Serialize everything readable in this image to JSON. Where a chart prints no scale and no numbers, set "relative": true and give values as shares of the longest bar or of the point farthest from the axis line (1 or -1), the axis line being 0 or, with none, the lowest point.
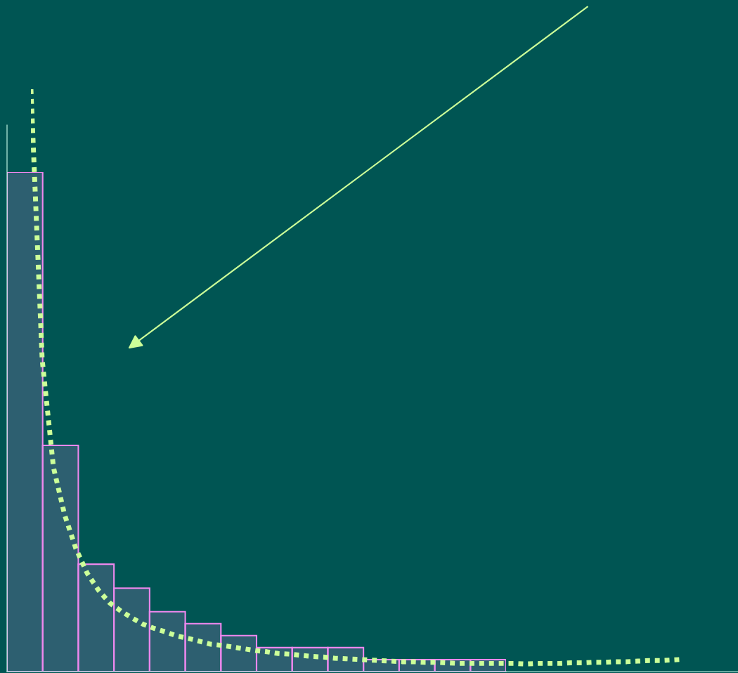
{
  "chart_data": [
    {
      "type": "bar",
      "relative": true,
      "color": "#ee88ee",
      "categories": [
        null,
        null,
        null,
        null,
        null,
        null,
        null,
        null,
        null,
        null,
        null,
        null,
        null,
        null
      ],
      "values": [
        1,
        0.453,
        0.215,
        0.167,
        0.12,
        0.096,
        0.072,
        0.048,
        0.048,
        0.048,
        0.024,
        0.024,
        0.024,
        0.024
      ]
    },
    {
      "type": "line",
      "relative": true,
      "color": "#ccff99",
      "line_style": "dotted",
      "categories": [
        null,
        null,
        null,
        null,
        null,
        null,
        null,
        null,
        null,
        null,
        null,
        null,
        null,
        null,
        null,
        null,
        null,
        null,
        null,
        null,
        null,
        null,
        null,
        null,
        null,
        null,
        null,
        null,
        null,
        null,
        null,
        null,
        null,
        null,
        null,
        null,
        null,
        null,
        null,
        null,
        null,
        null,
        null,
        null,
        null,
        null,
        null,
        null,
        null,
        null,
        null,
        null,
        null,
        null,
        null,
        null,
        null,
        null,
        null
      ],
      "values": [
        1,
        0.536,
        0.351,
        0.269,
        0.211,
        0.169,
        0.14,
        0.118,
        0.104,
        0.092,
        0.081,
        0.074,
        0.068,
        0.061,
        0.057,
        0.052,
        0.047,
        0.045,
        0.042,
        0.039,
        0.036,
        0.034,
        0.031,
        0.03,
        0.028,
        0.026,
        0.025,
        0.023,
        0.022,
        0.021,
        0.02,
        0.019,
        0.018,
        0.017,
        0.017,
        0.016,
        0.016,
        0.015,
        0.014,
        0.014,
        0.014,
        0.014,
        0.014,
        0.014,
        0.013,
        0.014,
        0.014,
        0.014,
        0.015,
        0.015,
        0.016,
        0.016,
        0.017,
        0.017,
        0.018,
        0.019,
        0.019,
        0.02,
        0.021
      ]
    }
  ]
}
